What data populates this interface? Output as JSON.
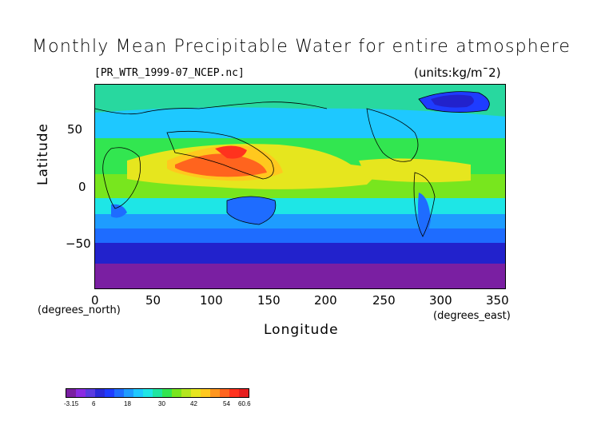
{
  "title": "Monthly Mean Precipitable Water for entire atmosphere",
  "file_label": "[PR_WTR_1999-07_NCEP.nc]",
  "units_label": "(units:kg/m¯2)",
  "x_axis": {
    "title": "Longitude",
    "unit_label": "(degrees_east)",
    "ticks": [
      "0",
      "50",
      "100",
      "150",
      "200",
      "250",
      "300",
      "350"
    ]
  },
  "y_axis": {
    "title": "Latitude",
    "unit_label": "(degrees_north)",
    "ticks": [
      "50",
      "0",
      "−50"
    ]
  },
  "colorbar": {
    "labels": [
      "-3.15",
      "6",
      "18",
      "30",
      "42",
      "54",
      "60.6"
    ],
    "colors": [
      "#7a1fa2",
      "#8a2be2",
      "#5a3be0",
      "#2a2ad8",
      "#1e3cff",
      "#1e6cff",
      "#1e9cff",
      "#1ec8ff",
      "#1ee6e6",
      "#1ee6a0",
      "#32e650",
      "#78e61e",
      "#b4e61e",
      "#e6e61e",
      "#ffc81e",
      "#ff961e",
      "#ff641e",
      "#ff321e",
      "#e61e1e"
    ]
  },
  "map_colors": {
    "polar_south": "#7a1fa2",
    "high_lat_south": "#2222cc",
    "mid_south": "#1e9cff",
    "subtropic": "#1ee6a0",
    "tropic_green": "#78e61e",
    "warm": "#e6e61e",
    "hot": "#ff641e",
    "north_cyan": "#1ec8ff",
    "greenland_blue": "#2222cc"
  }
}
